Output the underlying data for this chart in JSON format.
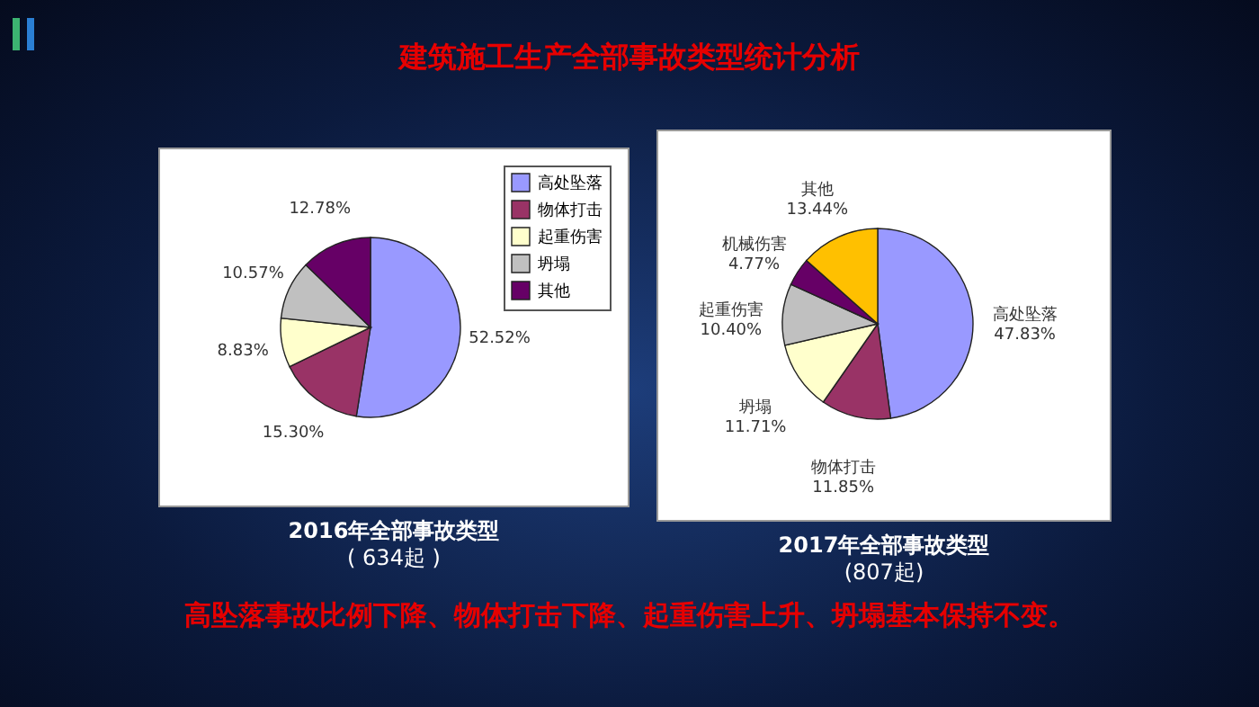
{
  "chart_data": [
    {
      "type": "other",
      "title": "建筑施工生产全部事故类型统计分析",
      "annotations": [
        "高坠落事故比例下降、物体打击下降、起重伤害上升、坍塌基本保持不变。"
      ]
    },
    {
      "type": "pie",
      "title": "2016年全部事故类型",
      "subtitle": "( 634起 )",
      "categories": [
        "高处坠落",
        "物体打击",
        "起重伤害",
        "坍塌",
        "其他"
      ],
      "values": [
        52.52,
        15.3,
        8.83,
        10.57,
        12.78
      ],
      "colors": [
        "#9999ff",
        "#993366",
        "#ffffcc",
        "#c0c0c0",
        "#660066"
      ],
      "value_labels": [
        "52.52%",
        "15.30%",
        "8.83%",
        "10.57%",
        "12.78%"
      ],
      "legend": "top right"
    },
    {
      "type": "pie",
      "title": "2017年全部事故类型",
      "subtitle": "(807起)",
      "categories": [
        "高处坠落",
        "物体打击",
        "坍塌",
        "起重伤害",
        "机械伤害",
        "其他"
      ],
      "values": [
        47.83,
        11.85,
        11.71,
        10.4,
        4.77,
        13.44
      ],
      "colors": [
        "#9999ff",
        "#993366",
        "#ffffcc",
        "#c0c0c0",
        "#660066",
        "#ffc000"
      ],
      "value_labels": [
        "47.83%",
        "11.85%",
        "11.71%",
        "10.40%",
        "4.77%",
        "13.44%"
      ]
    }
  ]
}
